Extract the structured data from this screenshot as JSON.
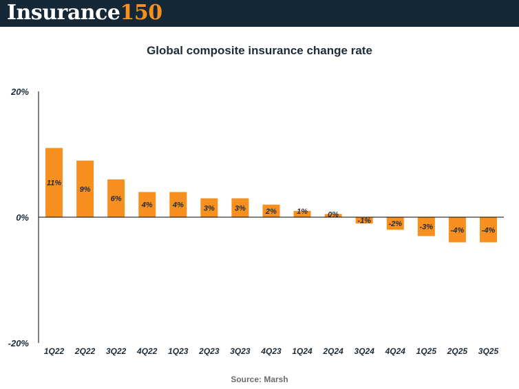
{
  "header": {
    "logo_word": "Insurance",
    "logo_number": "150",
    "background_color": "#142838",
    "accent_color": "#f7901e"
  },
  "chart_data": {
    "type": "bar",
    "title": "Global composite insurance change rate",
    "xlabel": "",
    "ylabel": "",
    "categories": [
      "1Q22",
      "2Q22",
      "3Q22",
      "4Q22",
      "1Q23",
      "2Q23",
      "3Q23",
      "4Q23",
      "1Q24",
      "2Q24",
      "3Q24",
      "4Q24",
      "1Q25",
      "2Q25",
      "3Q25"
    ],
    "values": [
      11,
      9,
      6,
      4,
      4,
      3,
      3,
      2,
      1,
      0.5,
      -1,
      -2,
      -3,
      -4,
      -4
    ],
    "data_labels": [
      "11%",
      "9%",
      "6%",
      "4%",
      "4%",
      "3%",
      "3%",
      "2%",
      "1%",
      "0%",
      "-1%",
      "-2%",
      "-3%",
      "-4%",
      "-4%"
    ],
    "ylim": [
      -20,
      20
    ],
    "y_ticks": [
      20,
      0,
      -20
    ],
    "y_tick_labels": [
      "20%",
      "0%",
      "-20%"
    ],
    "grid": false,
    "legend": "none",
    "bar_color": "#f7901e"
  },
  "source": "Source: Marsh"
}
